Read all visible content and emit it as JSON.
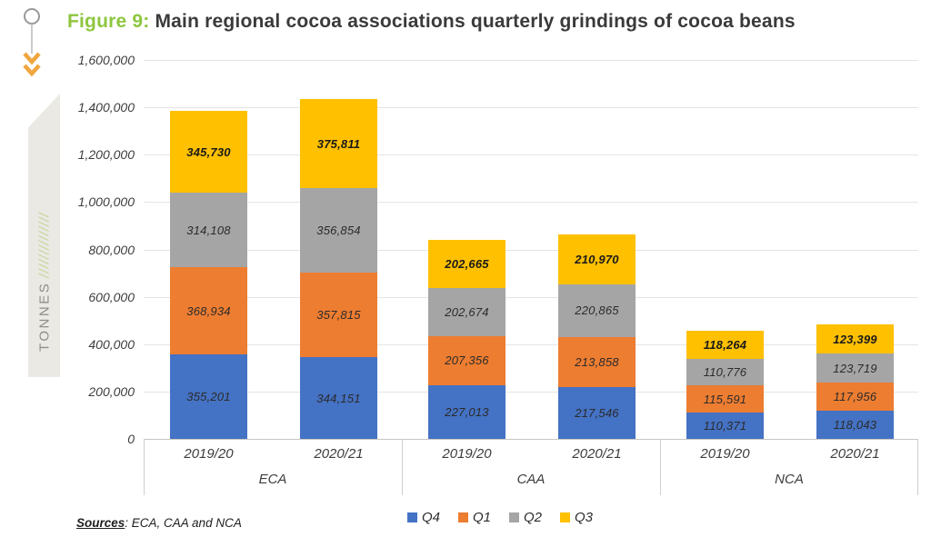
{
  "header": {
    "figure_label": "Figure 9:",
    "title": "Main regional cocoa associations quarterly grindings of cocoa beans"
  },
  "y_axis": {
    "unit": "TONNES",
    "slashes": "//////////////",
    "tick_labels": [
      "0",
      "200,000",
      "400,000",
      "600,000",
      "800,000",
      "1,000,000",
      "1,200,000",
      "1,400,000",
      "1,600,000"
    ],
    "max": 1600000
  },
  "chart_data": {
    "type": "bar",
    "stacked": true,
    "title": "Main regional cocoa associations quarterly grindings of cocoa beans",
    "ylabel": "TONNES",
    "ylim": [
      0,
      1600000
    ],
    "grid": true,
    "legend_position": "bottom",
    "groups": [
      {
        "label": "ECA",
        "categories": [
          "2019/20",
          "2020/21"
        ]
      },
      {
        "label": "CAA",
        "categories": [
          "2019/20",
          "2020/21"
        ]
      },
      {
        "label": "NCA",
        "categories": [
          "2019/20",
          "2020/21"
        ]
      }
    ],
    "categories": [
      "2019/20",
      "2020/21",
      "2019/20",
      "2020/21",
      "2019/20",
      "2020/21"
    ],
    "series": [
      {
        "name": "Q4",
        "color": "#4472C4",
        "values": [
          355201,
          344151,
          227013,
          217546,
          110371,
          118043
        ]
      },
      {
        "name": "Q1",
        "color": "#ED7D31",
        "values": [
          368934,
          357815,
          207356,
          213858,
          115591,
          117956
        ]
      },
      {
        "name": "Q2",
        "color": "#A5A5A5",
        "values": [
          314108,
          356854,
          202674,
          220865,
          110776,
          123719
        ]
      },
      {
        "name": "Q3",
        "color": "#FFC000",
        "values": [
          345730,
          375811,
          202665,
          210970,
          118264,
          123399
        ]
      }
    ]
  },
  "legend": [
    {
      "label": "Q4",
      "color": "#4472C4"
    },
    {
      "label": "Q1",
      "color": "#ED7D31"
    },
    {
      "label": "Q2",
      "color": "#A5A5A5"
    },
    {
      "label": "Q3",
      "color": "#FFC000"
    }
  ],
  "sources": {
    "label": "Sources",
    "text": ": ECA, CAA and NCA"
  },
  "colors": {
    "accent_green": "#8DC63F",
    "chevron_orange": "#F0A63E",
    "marker_gray": "#9A9A9A",
    "grid": "#E4E4E2",
    "axis": "#C6C6C2"
  }
}
